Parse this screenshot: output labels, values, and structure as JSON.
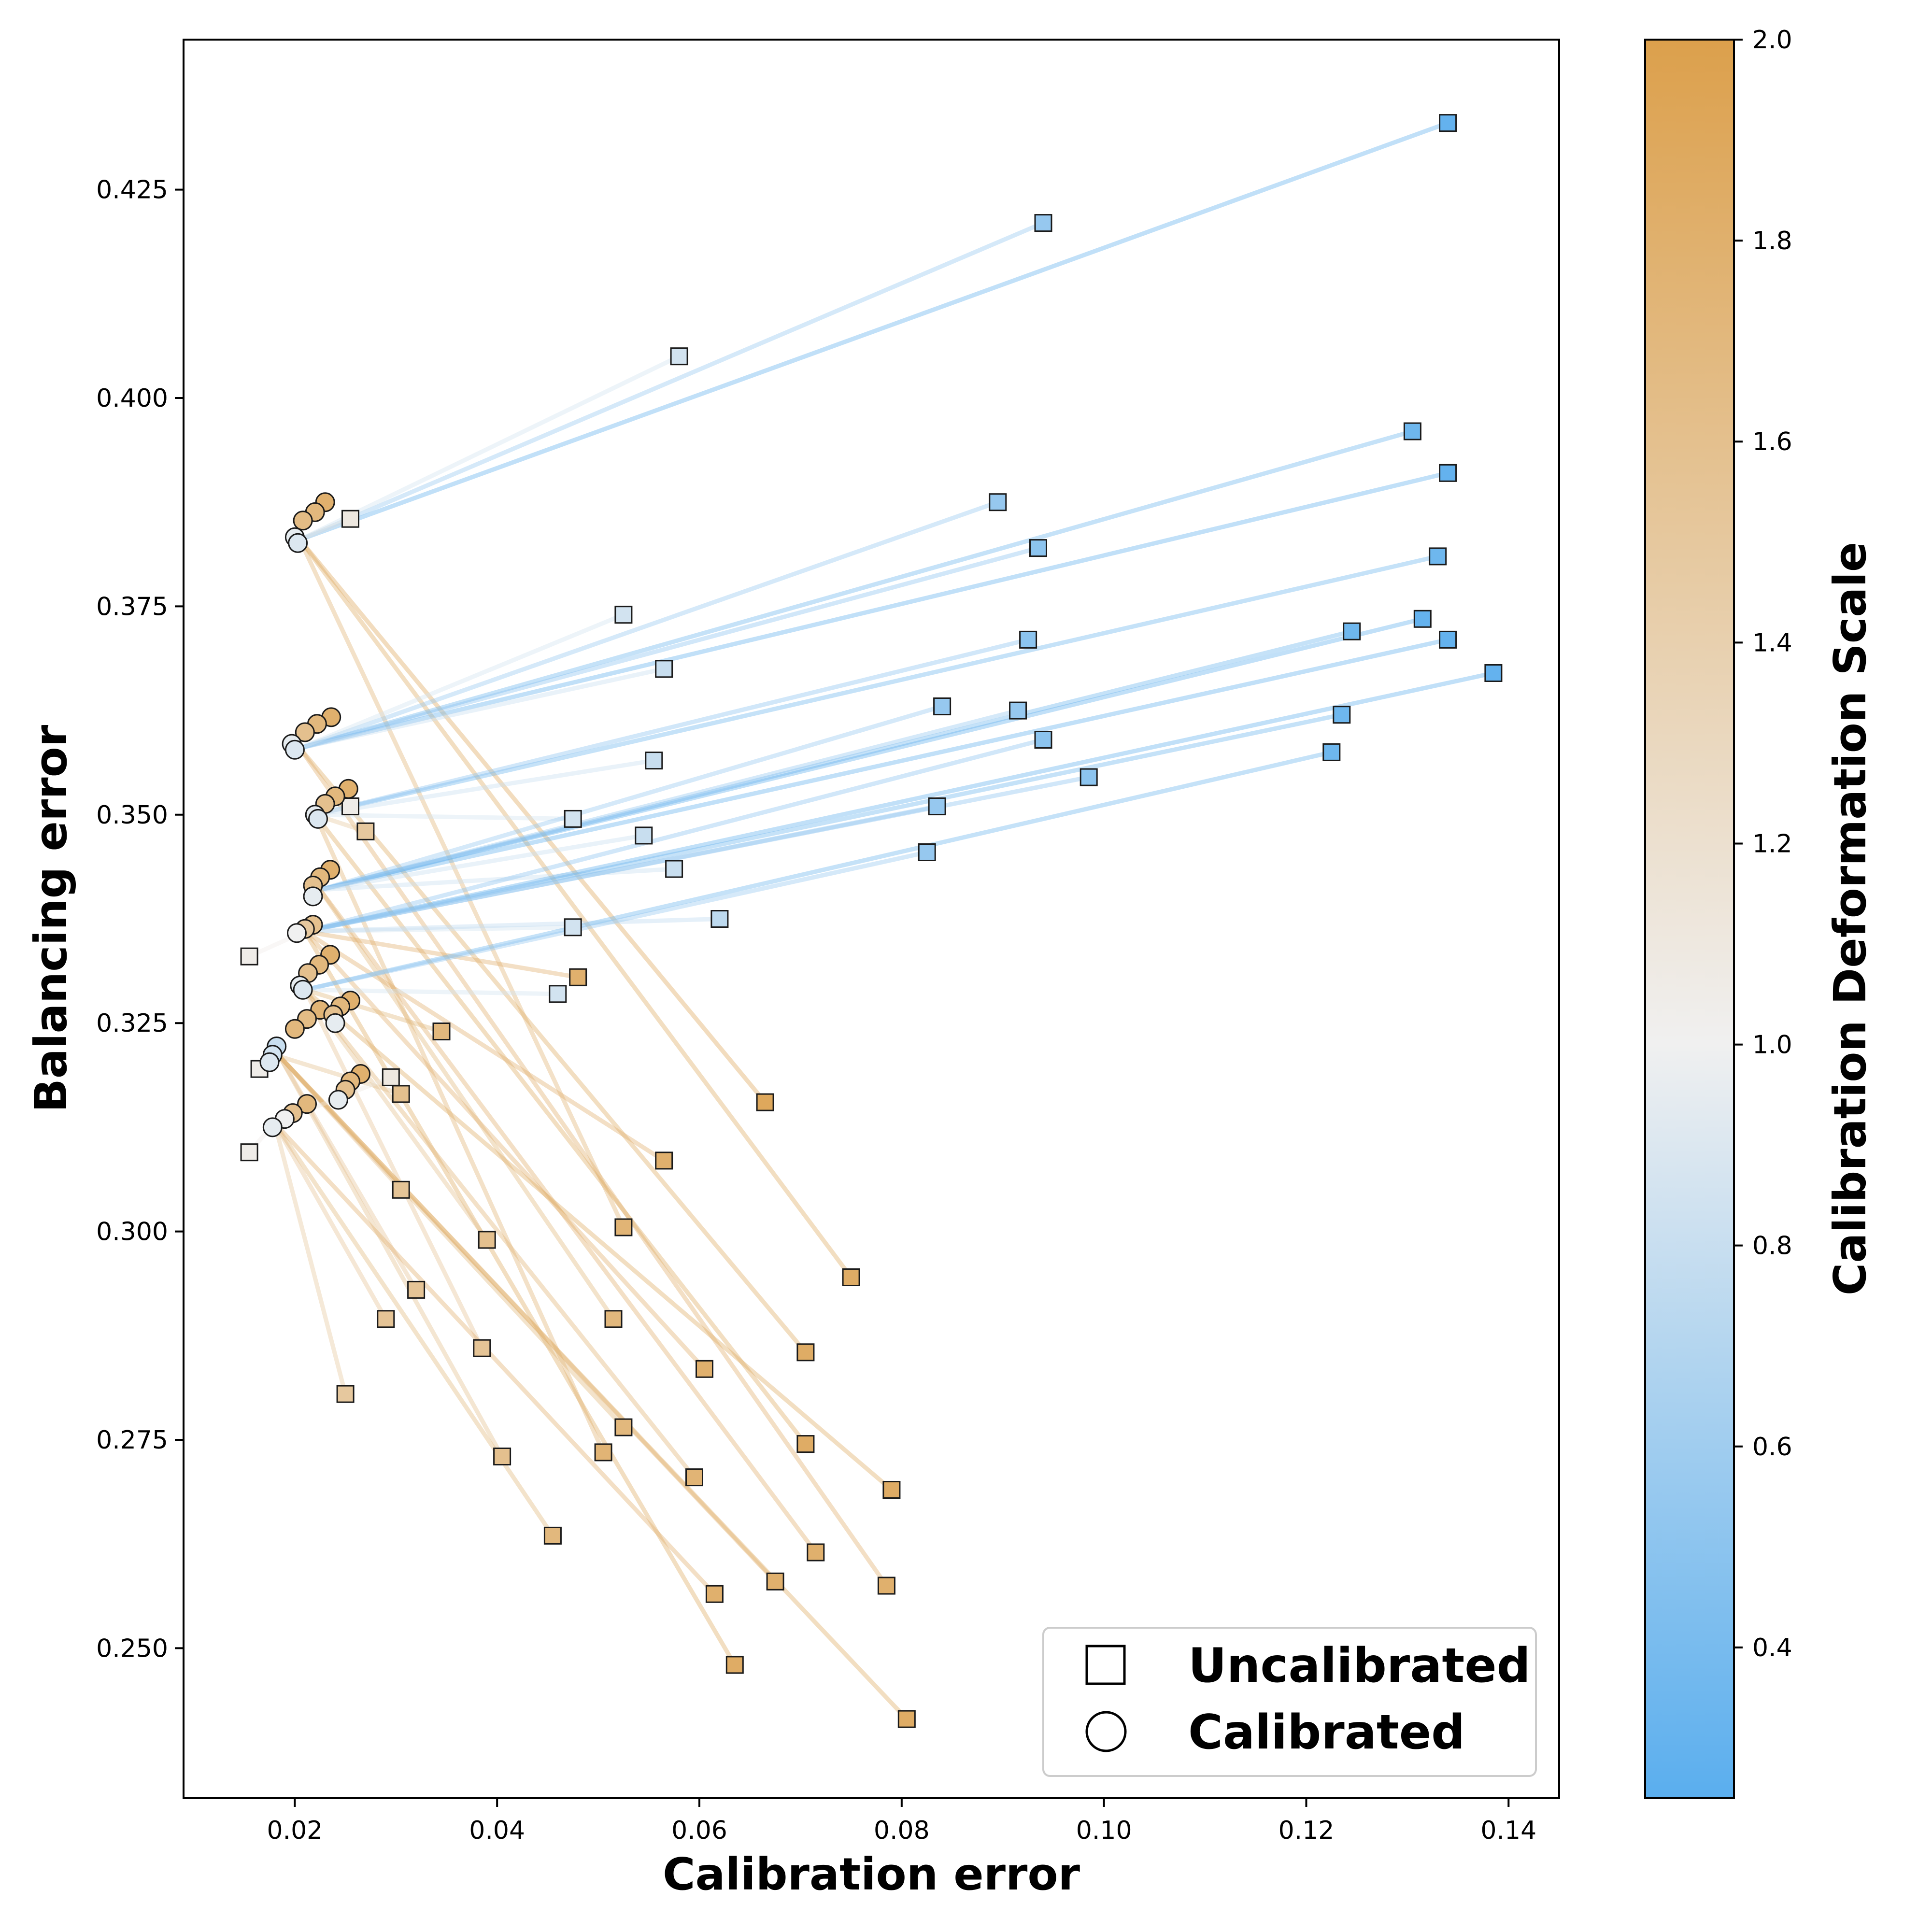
{
  "chart_data": {
    "type": "scatter",
    "xlabel": "Calibration error",
    "ylabel": "Balancing error",
    "xlim": [
      0.009,
      0.145
    ],
    "ylim": [
      0.232,
      0.443
    ],
    "xticks": [
      0.02,
      0.04,
      0.06,
      0.08,
      0.1,
      0.12,
      0.14
    ],
    "xtick_labels": [
      "0.02",
      "0.04",
      "0.06",
      "0.08",
      "0.10",
      "0.12",
      "0.14"
    ],
    "yticks": [
      0.25,
      0.275,
      0.3,
      0.325,
      0.35,
      0.375,
      0.4,
      0.425
    ],
    "ytick_labels": [
      "0.250",
      "0.275",
      "0.300",
      "0.325",
      "0.350",
      "0.375",
      "0.400",
      "0.425"
    ],
    "colorbar": {
      "label": "Calibration Deformation Scale",
      "range": [
        0.25,
        2.0
      ],
      "ticks": [
        0.4,
        0.6,
        0.8,
        1.0,
        1.2,
        1.4,
        1.6,
        1.8,
        2.0
      ],
      "tick_labels": [
        "0.4",
        "0.6",
        "0.8",
        "1.0",
        "1.2",
        "1.4",
        "1.6",
        "1.8",
        "2.0"
      ],
      "color_low": "#5aaeee",
      "color_mid": "#f0f0f0",
      "color_high": "#dca04c"
    },
    "legend": {
      "position": "bottom-right",
      "entries": [
        {
          "label": "Uncalibrated",
          "marker": "square"
        },
        {
          "label": "Calibrated",
          "marker": "circle"
        }
      ]
    },
    "groups": [
      {
        "name": "group-1",
        "calibrated": [
          0.0205,
          0.383
        ],
        "uncalibrated": [
          [
            0.134,
            0.433,
            0.3
          ],
          [
            0.094,
            0.421,
            0.55
          ],
          [
            0.058,
            0.405,
            0.85
          ],
          [
            0.0255,
            0.3855,
            1.1
          ],
          [
            0.0525,
            0.3005,
            1.75
          ],
          [
            0.0665,
            0.3155,
            1.9
          ],
          [
            0.075,
            0.2945,
            1.85
          ]
        ]
      },
      {
        "name": "group-2",
        "calibrated": [
          0.0205,
          0.358
        ],
        "uncalibrated": [
          [
            0.1305,
            0.396,
            0.35
          ],
          [
            0.134,
            0.391,
            0.3
          ],
          [
            0.0895,
            0.3875,
            0.55
          ],
          [
            0.0935,
            0.382,
            0.5
          ],
          [
            0.0525,
            0.374,
            0.85
          ],
          [
            0.0565,
            0.3675,
            0.8
          ],
          [
            0.0705,
            0.2855,
            1.85
          ],
          [
            0.0785,
            0.2575,
            1.8
          ]
        ]
      },
      {
        "name": "group-3",
        "calibrated": [
          0.022,
          0.35
        ],
        "uncalibrated": [
          [
            0.133,
            0.381,
            0.35
          ],
          [
            0.0925,
            0.371,
            0.5
          ],
          [
            0.0555,
            0.3565,
            0.8
          ],
          [
            0.0475,
            0.3495,
            0.85
          ],
          [
            0.0255,
            0.351,
            1.05
          ],
          [
            0.027,
            0.348,
            1.5
          ],
          [
            0.0505,
            0.2735,
            1.75
          ],
          [
            0.0705,
            0.2745,
            1.85
          ]
        ]
      },
      {
        "name": "group-4",
        "calibrated": [
          0.0225,
          0.341
        ],
        "uncalibrated": [
          [
            0.1245,
            0.372,
            0.35
          ],
          [
            0.1315,
            0.3735,
            0.3
          ],
          [
            0.134,
            0.371,
            0.3
          ],
          [
            0.084,
            0.363,
            0.55
          ],
          [
            0.0915,
            0.3625,
            0.55
          ],
          [
            0.0545,
            0.3475,
            0.8
          ],
          [
            0.0575,
            0.3435,
            0.8
          ],
          [
            0.0515,
            0.2895,
            1.7
          ],
          [
            0.0715,
            0.2615,
            1.8
          ]
        ]
      },
      {
        "name": "group-5",
        "calibrated": [
          0.021,
          0.336
        ],
        "uncalibrated": [
          [
            0.1385,
            0.367,
            0.3
          ],
          [
            0.1235,
            0.362,
            0.35
          ],
          [
            0.094,
            0.359,
            0.5
          ],
          [
            0.0985,
            0.3545,
            0.5
          ],
          [
            0.0835,
            0.351,
            0.55
          ],
          [
            0.0475,
            0.3365,
            0.85
          ],
          [
            0.062,
            0.3375,
            0.75
          ],
          [
            0.0155,
            0.333,
            1.05
          ],
          [
            0.048,
            0.3305,
            1.8
          ],
          [
            0.0565,
            0.3085,
            1.8
          ],
          [
            0.0605,
            0.2835,
            1.8
          ],
          [
            0.0635,
            0.248,
            1.85
          ]
        ]
      },
      {
        "name": "group-6",
        "calibrated": [
          0.021,
          0.329
        ],
        "uncalibrated": [
          [
            0.1225,
            0.3575,
            0.35
          ],
          [
            0.0825,
            0.3455,
            0.55
          ],
          [
            0.046,
            0.3285,
            0.85
          ],
          [
            0.0345,
            0.324,
            1.7
          ],
          [
            0.039,
            0.299,
            1.6
          ],
          [
            0.0385,
            0.286,
            1.55
          ],
          [
            0.0595,
            0.2705,
            1.75
          ],
          [
            0.079,
            0.269,
            1.85
          ]
        ]
      },
      {
        "name": "group-7",
        "calibrated": [
          0.0185,
          0.321
        ],
        "uncalibrated": [
          [
            0.0165,
            0.3195,
            1.05
          ],
          [
            0.0305,
            0.3165,
            1.6
          ],
          [
            0.0305,
            0.305,
            1.55
          ],
          [
            0.032,
            0.293,
            1.55
          ],
          [
            0.0405,
            0.273,
            1.6
          ],
          [
            0.0525,
            0.2765,
            1.7
          ],
          [
            0.0675,
            0.258,
            1.8
          ],
          [
            0.0805,
            0.2415,
            1.85
          ]
        ]
      },
      {
        "name": "group-8",
        "calibrated": [
          0.018,
          0.313
        ],
        "uncalibrated": [
          [
            0.0155,
            0.3095,
            1.05
          ],
          [
            0.0295,
            0.3185,
            1.1
          ],
          [
            0.029,
            0.2895,
            1.55
          ],
          [
            0.025,
            0.2805,
            1.5
          ],
          [
            0.0455,
            0.2635,
            1.7
          ],
          [
            0.0615,
            0.2565,
            1.8
          ]
        ]
      }
    ],
    "calibrated_points": [
      {
        "x": 0.023,
        "y": 0.3875,
        "c": 1.8
      },
      {
        "x": 0.022,
        "y": 0.3863,
        "c": 1.7
      },
      {
        "x": 0.0208,
        "y": 0.3853,
        "c": 1.65
      },
      {
        "x": 0.02,
        "y": 0.3833,
        "c": 0.95
      },
      {
        "x": 0.0203,
        "y": 0.3826,
        "c": 0.9
      },
      {
        "x": 0.0236,
        "y": 0.3617,
        "c": 1.8
      },
      {
        "x": 0.0222,
        "y": 0.3609,
        "c": 1.7
      },
      {
        "x": 0.021,
        "y": 0.3599,
        "c": 1.6
      },
      {
        "x": 0.0197,
        "y": 0.3585,
        "c": 0.95
      },
      {
        "x": 0.02,
        "y": 0.3578,
        "c": 0.9
      },
      {
        "x": 0.0253,
        "y": 0.3531,
        "c": 1.8
      },
      {
        "x": 0.024,
        "y": 0.3522,
        "c": 1.7
      },
      {
        "x": 0.023,
        "y": 0.3513,
        "c": 1.6
      },
      {
        "x": 0.022,
        "y": 0.35,
        "c": 0.95
      },
      {
        "x": 0.0223,
        "y": 0.3495,
        "c": 0.9
      },
      {
        "x": 0.0235,
        "y": 0.3434,
        "c": 1.8
      },
      {
        "x": 0.0225,
        "y": 0.3425,
        "c": 1.7
      },
      {
        "x": 0.0218,
        "y": 0.3415,
        "c": 1.6
      },
      {
        "x": 0.0218,
        "y": 0.3402,
        "c": 0.95
      },
      {
        "x": 0.0218,
        "y": 0.3368,
        "c": 1.6
      },
      {
        "x": 0.021,
        "y": 0.3363,
        "c": 1.5
      },
      {
        "x": 0.0202,
        "y": 0.3358,
        "c": 1.0
      },
      {
        "x": 0.0235,
        "y": 0.3332,
        "c": 1.8
      },
      {
        "x": 0.0224,
        "y": 0.332,
        "c": 1.7
      },
      {
        "x": 0.0213,
        "y": 0.331,
        "c": 1.6
      },
      {
        "x": 0.0205,
        "y": 0.3295,
        "c": 0.95
      },
      {
        "x": 0.0208,
        "y": 0.329,
        "c": 0.9
      },
      {
        "x": 0.0255,
        "y": 0.3277,
        "c": 1.8
      },
      {
        "x": 0.0245,
        "y": 0.327,
        "c": 1.7
      },
      {
        "x": 0.0225,
        "y": 0.3266,
        "c": 1.75
      },
      {
        "x": 0.0238,
        "y": 0.326,
        "c": 1.6
      },
      {
        "x": 0.0212,
        "y": 0.3255,
        "c": 1.65
      },
      {
        "x": 0.02,
        "y": 0.3243,
        "c": 1.7
      },
      {
        "x": 0.024,
        "y": 0.325,
        "c": 0.95
      },
      {
        "x": 0.0182,
        "y": 0.3222,
        "c": 0.8
      },
      {
        "x": 0.0178,
        "y": 0.3212,
        "c": 0.85
      },
      {
        "x": 0.0175,
        "y": 0.3203,
        "c": 0.9
      },
      {
        "x": 0.0265,
        "y": 0.3189,
        "c": 1.8
      },
      {
        "x": 0.0255,
        "y": 0.318,
        "c": 1.7
      },
      {
        "x": 0.025,
        "y": 0.317,
        "c": 1.6
      },
      {
        "x": 0.0243,
        "y": 0.3158,
        "c": 0.95
      },
      {
        "x": 0.0212,
        "y": 0.3153,
        "c": 1.7
      },
      {
        "x": 0.0198,
        "y": 0.3142,
        "c": 1.6
      },
      {
        "x": 0.019,
        "y": 0.3135,
        "c": 1.0
      },
      {
        "x": 0.0178,
        "y": 0.3125,
        "c": 0.95
      }
    ]
  }
}
